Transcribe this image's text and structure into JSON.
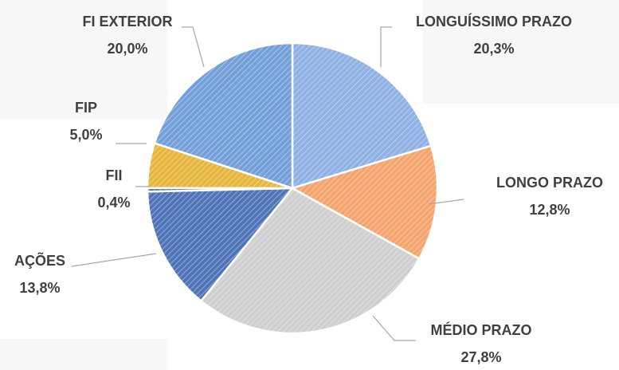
{
  "chart_data": {
    "type": "pie",
    "categories": [
      "LONGUÍSSIMO PRAZO",
      "LONGO PRAZO",
      "MÉDIO PRAZO",
      "AÇÕES",
      "FII",
      "FIP",
      "FI EXTERIOR"
    ],
    "values": [
      20.3,
      12.8,
      27.8,
      13.8,
      0.4,
      5.0,
      20.0
    ],
    "value_labels": [
      "20,3%",
      "12,8%",
      "27,8%",
      "13,8%",
      "0,4%",
      "5,0%",
      "20,0%"
    ],
    "colors": [
      "#8fb1e4",
      "#f5a46e",
      "#cfcfcf",
      "#4f74b8",
      "#3f67a8",
      "#e6b73c",
      "#74a0d9"
    ]
  }
}
